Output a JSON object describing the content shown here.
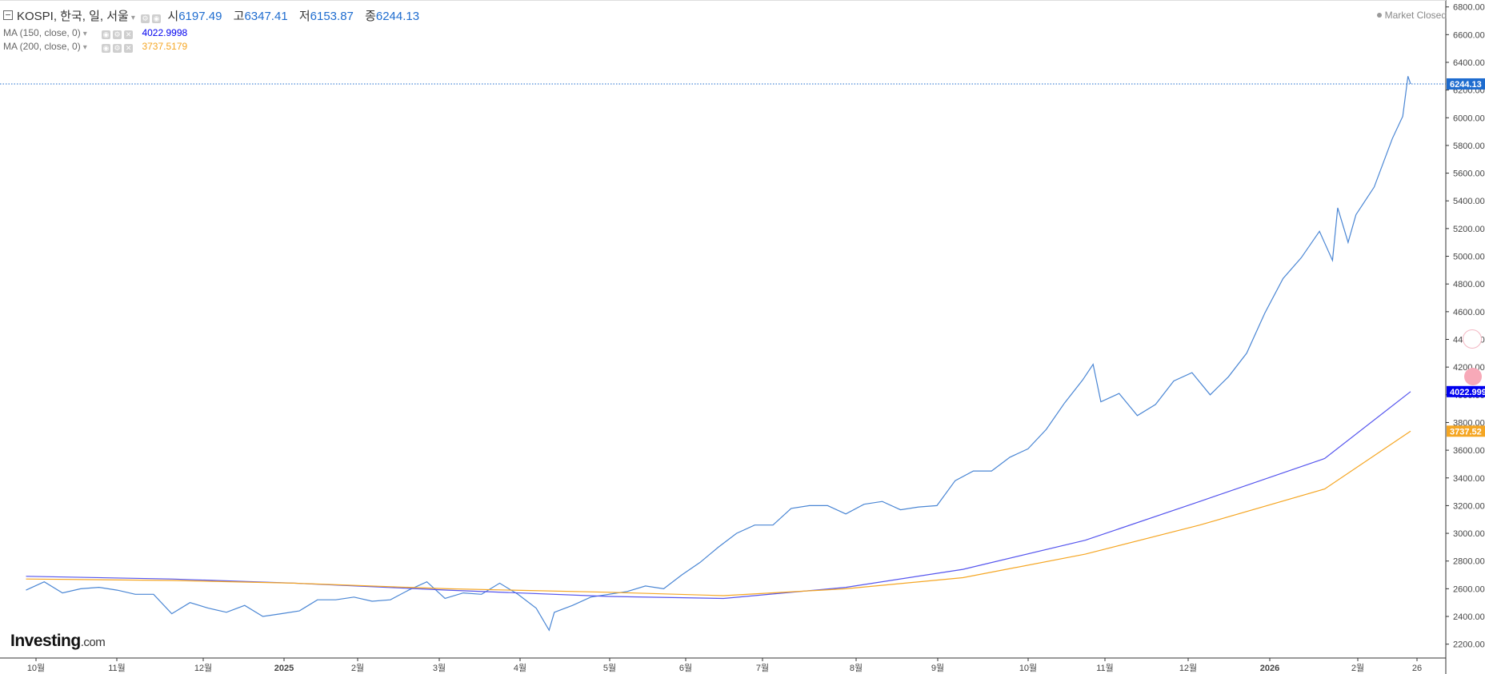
{
  "header": {
    "symbol": "KOSPI, 한국, 일, 서울",
    "open_label": "시",
    "open": "6197.49",
    "high_label": "고",
    "high": "6347.41",
    "low_label": "저",
    "low": "6153.87",
    "close_label": "종",
    "close": "6244.13"
  },
  "indicators": [
    {
      "label": "MA (150, close, 0)",
      "value": "4022.9998",
      "color": "#0000ee"
    },
    {
      "label": "MA (200, close, 0)",
      "value": "3737.5179",
      "color": "#f5a623"
    }
  ],
  "status": "Market Closed",
  "logo": {
    "main": "Investing",
    "suffix": ".com"
  },
  "colors": {
    "price": "#4a86d4",
    "ma150": "#5555ee",
    "ma200": "#f5a623",
    "last_price_tag": "#1e6ccf",
    "ma150_tag": "#0000ee",
    "ma200_tag": "#f5a623"
  },
  "chart_data": {
    "type": "line",
    "title": "KOSPI, 한국, 일, 서울",
    "ylim": [
      2100,
      6850
    ],
    "y_ticks": [
      2200,
      2400,
      2600,
      2800,
      3000,
      3200,
      3400,
      3600,
      3800,
      4000,
      4200,
      4400,
      4600,
      4800,
      5000,
      5200,
      5400,
      5600,
      5800,
      6000,
      6200,
      6400,
      6600,
      6800
    ],
    "x_ticks": [
      "10월",
      "11월",
      "12월",
      "2025",
      "2월",
      "3월",
      "4월",
      "5월",
      "6월",
      "7월",
      "8월",
      "9월",
      "10월",
      "11월",
      "12월",
      "2026",
      "2월",
      "26"
    ],
    "last_price_label": "6244.13",
    "ma150_label": "4022.9998",
    "ma200_label": "3737.52",
    "series": [
      {
        "name": "KOSPI",
        "points": [
          [
            "2024-09-20",
            2590
          ],
          [
            "2024-09-27",
            2650
          ],
          [
            "2024-10-04",
            2570
          ],
          [
            "2024-10-11",
            2600
          ],
          [
            "2024-10-18",
            2610
          ],
          [
            "2024-10-25",
            2590
          ],
          [
            "2024-11-01",
            2560
          ],
          [
            "2024-11-08",
            2560
          ],
          [
            "2024-11-15",
            2420
          ],
          [
            "2024-11-22",
            2500
          ],
          [
            "2024-11-29",
            2460
          ],
          [
            "2024-12-06",
            2430
          ],
          [
            "2024-12-13",
            2480
          ],
          [
            "2024-12-20",
            2400
          ],
          [
            "2024-12-27",
            2420
          ],
          [
            "2025-01-03",
            2440
          ],
          [
            "2025-01-10",
            2520
          ],
          [
            "2025-01-17",
            2520
          ],
          [
            "2025-01-24",
            2540
          ],
          [
            "2025-01-31",
            2510
          ],
          [
            "2025-02-07",
            2520
          ],
          [
            "2025-02-14",
            2590
          ],
          [
            "2025-02-21",
            2650
          ],
          [
            "2025-02-28",
            2530
          ],
          [
            "2025-03-07",
            2570
          ],
          [
            "2025-03-14",
            2560
          ],
          [
            "2025-03-21",
            2640
          ],
          [
            "2025-03-28",
            2560
          ],
          [
            "2025-04-04",
            2460
          ],
          [
            "2025-04-09",
            2300
          ],
          [
            "2025-04-11",
            2430
          ],
          [
            "2025-04-18",
            2480
          ],
          [
            "2025-04-25",
            2540
          ],
          [
            "2025-05-02",
            2560
          ],
          [
            "2025-05-09",
            2580
          ],
          [
            "2025-05-16",
            2620
          ],
          [
            "2025-05-23",
            2600
          ],
          [
            "2025-05-30",
            2700
          ],
          [
            "2025-06-06",
            2790
          ],
          [
            "2025-06-13",
            2900
          ],
          [
            "2025-06-20",
            3000
          ],
          [
            "2025-06-27",
            3060
          ],
          [
            "2025-07-04",
            3060
          ],
          [
            "2025-07-11",
            3180
          ],
          [
            "2025-07-18",
            3200
          ],
          [
            "2025-07-25",
            3200
          ],
          [
            "2025-08-01",
            3140
          ],
          [
            "2025-08-08",
            3210
          ],
          [
            "2025-08-15",
            3230
          ],
          [
            "2025-08-22",
            3170
          ],
          [
            "2025-08-29",
            3190
          ],
          [
            "2025-09-05",
            3200
          ],
          [
            "2025-09-12",
            3380
          ],
          [
            "2025-09-19",
            3450
          ],
          [
            "2025-09-26",
            3450
          ],
          [
            "2025-10-03",
            3549
          ],
          [
            "2025-10-10",
            3610
          ],
          [
            "2025-10-17",
            3750
          ],
          [
            "2025-10-24",
            3940
          ],
          [
            "2025-10-31",
            4107
          ],
          [
            "2025-11-04",
            4220
          ],
          [
            "2025-11-07",
            3950
          ],
          [
            "2025-11-14",
            4010
          ],
          [
            "2025-11-21",
            3850
          ],
          [
            "2025-11-28",
            3930
          ],
          [
            "2025-12-05",
            4100
          ],
          [
            "2025-12-12",
            4160
          ],
          [
            "2025-12-19",
            4000
          ],
          [
            "2025-12-26",
            4130
          ],
          [
            "2026-01-02",
            4300
          ],
          [
            "2026-01-09",
            4590
          ],
          [
            "2026-01-16",
            4840
          ],
          [
            "2026-01-23",
            4990
          ],
          [
            "2026-01-30",
            5180
          ],
          [
            "2026-02-04",
            4970
          ],
          [
            "2026-02-06",
            5350
          ],
          [
            "2026-02-10",
            5100
          ],
          [
            "2026-02-13",
            5300
          ],
          [
            "2026-02-20",
            5500
          ],
          [
            "2026-02-27",
            5850
          ],
          [
            "2026-03-03",
            6010
          ],
          [
            "2026-03-05",
            6300
          ],
          [
            "2026-03-06",
            6244.13
          ]
        ]
      },
      {
        "name": "MA (150, close, 0)",
        "points": [
          [
            "2024-09-20",
            2690
          ],
          [
            "2024-11-15",
            2670
          ],
          [
            "2025-01-01",
            2640
          ],
          [
            "2025-03-01",
            2590
          ],
          [
            "2025-05-01",
            2545
          ],
          [
            "2025-06-15",
            2530
          ],
          [
            "2025-08-01",
            2610
          ],
          [
            "2025-09-15",
            2740
          ],
          [
            "2025-11-01",
            2950
          ],
          [
            "2025-12-15",
            3230
          ],
          [
            "2026-02-01",
            3540
          ],
          [
            "2026-03-06",
            4022.9998
          ]
        ]
      },
      {
        "name": "MA (200, close, 0)",
        "points": [
          [
            "2024-09-20",
            2670
          ],
          [
            "2024-11-15",
            2660
          ],
          [
            "2025-01-01",
            2640
          ],
          [
            "2025-03-01",
            2600
          ],
          [
            "2025-05-01",
            2575
          ],
          [
            "2025-06-15",
            2550
          ],
          [
            "2025-08-01",
            2600
          ],
          [
            "2025-09-15",
            2680
          ],
          [
            "2025-11-01",
            2850
          ],
          [
            "2025-12-15",
            3060
          ],
          [
            "2026-02-01",
            3320
          ],
          [
            "2026-03-06",
            3737.5179
          ]
        ]
      }
    ]
  }
}
